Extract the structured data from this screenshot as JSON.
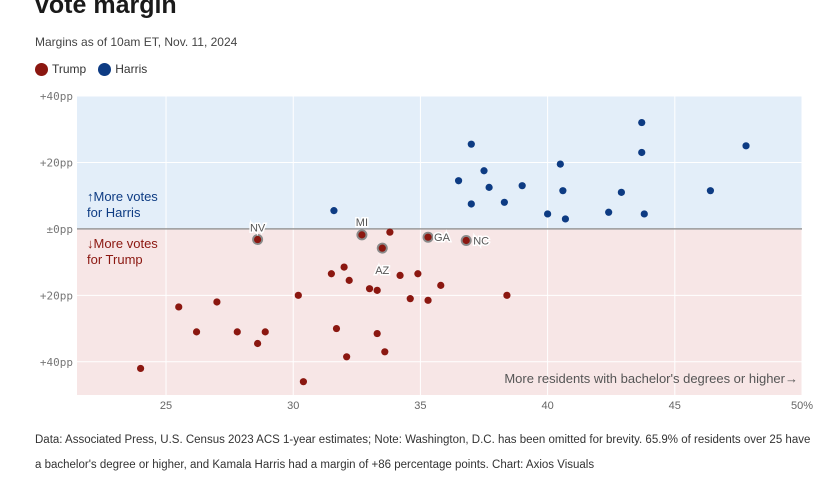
{
  "header": {
    "title": "vote margin",
    "subtitle": "Margins as of 10am ET, Nov. 11, 2024"
  },
  "legend": [
    {
      "label": "Trump",
      "color": "#8b1710"
    },
    {
      "label": "Harris",
      "color": "#0d3b83"
    }
  ],
  "chart_data": {
    "type": "scatter",
    "x_label": "More residents with bachelor's degrees or higher→",
    "y_labels": {
      "harris": "↑More votes\nfor Harris",
      "trump": "↓More votes\nfor Trump"
    },
    "xlim": [
      21.5,
      50
    ],
    "ylim": [
      -50,
      40
    ],
    "x_ticks": [
      {
        "value": 25,
        "label": "25"
      },
      {
        "value": 30,
        "label": "30"
      },
      {
        "value": 35,
        "label": "35"
      },
      {
        "value": 40,
        "label": "40"
      },
      {
        "value": 45,
        "label": "45"
      },
      {
        "value": 50,
        "label": "50%"
      }
    ],
    "y_ticks": [
      {
        "value": 40,
        "label": "+40pp"
      },
      {
        "value": 20,
        "label": "+20pp"
      },
      {
        "value": 0,
        "label": "±0pp"
      },
      {
        "value": -20,
        "label": "+20pp"
      },
      {
        "value": -40,
        "label": "+40pp"
      }
    ],
    "regions": {
      "harris_color": "#e3eef9",
      "trump_color": "#f7e6e6"
    },
    "series": [
      {
        "name": "Harris",
        "color": "#0d3b83",
        "points": [
          {
            "x": 31.6,
            "y": 5.5
          },
          {
            "x": 36.5,
            "y": 14.5
          },
          {
            "x": 37.0,
            "y": 7.5
          },
          {
            "x": 37.0,
            "y": 25.5
          },
          {
            "x": 37.5,
            "y": 17.5
          },
          {
            "x": 37.7,
            "y": 12.5
          },
          {
            "x": 38.3,
            "y": 8.0
          },
          {
            "x": 39.0,
            "y": 13.0
          },
          {
            "x": 40.0,
            "y": 4.5
          },
          {
            "x": 40.5,
            "y": 19.5
          },
          {
            "x": 40.6,
            "y": 11.5
          },
          {
            "x": 40.7,
            "y": 3.0
          },
          {
            "x": 42.4,
            "y": 5.0
          },
          {
            "x": 42.9,
            "y": 11.0
          },
          {
            "x": 43.7,
            "y": 32.0
          },
          {
            "x": 43.7,
            "y": 23.0
          },
          {
            "x": 43.8,
            "y": 4.5
          },
          {
            "x": 46.4,
            "y": 11.5
          },
          {
            "x": 47.8,
            "y": 25.0
          }
        ]
      },
      {
        "name": "Trump",
        "color": "#8b1710",
        "points": [
          {
            "x": 24.0,
            "y": -42.0
          },
          {
            "x": 25.5,
            "y": -23.5
          },
          {
            "x": 26.2,
            "y": -31.0
          },
          {
            "x": 27.0,
            "y": -22.0
          },
          {
            "x": 27.8,
            "y": -31.0
          },
          {
            "x": 28.6,
            "y": -3.2,
            "label": "NV"
          },
          {
            "x": 28.6,
            "y": -34.5
          },
          {
            "x": 28.9,
            "y": -31.0
          },
          {
            "x": 30.2,
            "y": -20.0
          },
          {
            "x": 30.4,
            "y": -46.0
          },
          {
            "x": 31.5,
            "y": -13.5
          },
          {
            "x": 31.7,
            "y": -30.0
          },
          {
            "x": 32.0,
            "y": -11.5
          },
          {
            "x": 32.1,
            "y": -38.5
          },
          {
            "x": 32.2,
            "y": -15.5
          },
          {
            "x": 32.7,
            "y": -1.8,
            "label": "MI"
          },
          {
            "x": 33.0,
            "y": -18.0
          },
          {
            "x": 33.3,
            "y": -18.5
          },
          {
            "x": 33.3,
            "y": -31.5
          },
          {
            "x": 33.5,
            "y": -5.8,
            "label": "AZ"
          },
          {
            "x": 33.6,
            "y": -37.0
          },
          {
            "x": 33.8,
            "y": -1.0
          },
          {
            "x": 34.2,
            "y": -14.0
          },
          {
            "x": 34.6,
            "y": -21.0
          },
          {
            "x": 34.9,
            "y": -13.5
          },
          {
            "x": 35.3,
            "y": -21.5
          },
          {
            "x": 35.3,
            "y": -2.5,
            "label": "GA"
          },
          {
            "x": 35.8,
            "y": -17.0
          },
          {
            "x": 36.8,
            "y": -3.5,
            "label": "NC"
          },
          {
            "x": 38.4,
            "y": -20.0
          }
        ]
      }
    ]
  },
  "footer": {
    "note": "Data: Associated Press, U.S. Census 2023 ACS 1-year estimates; Note: Washington, D.C. has been omitted for brevity. 65.9% of residents over 25 have a bachelor's degree or higher, and Kamala Harris had a margin of +86 percentage points. Chart: Axios Visuals"
  }
}
